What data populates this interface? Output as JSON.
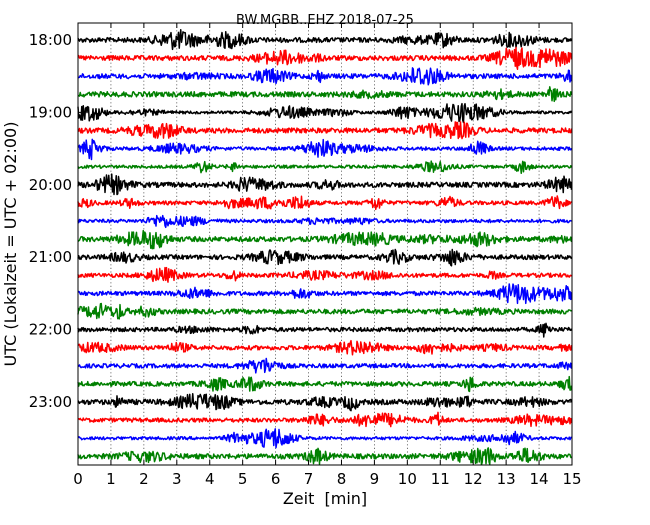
{
  "chart_data": {
    "type": "line",
    "title": "BW.MGBB..EHZ 2018-07-25",
    "xlabel": "Zeit  [min]",
    "ylabel": "UTC (Lokalzeit = UTC + 02:00)",
    "xlim": [
      0,
      15
    ],
    "x_ticks": [
      "0",
      "1",
      "2",
      "3",
      "4",
      "5",
      "6",
      "7",
      "8",
      "9",
      "10",
      "11",
      "12",
      "13",
      "14",
      "15"
    ],
    "y_ticks": [
      "18:00",
      "19:00",
      "20:00",
      "21:00",
      "22:00",
      "23:00"
    ],
    "grid": "vertical dotted",
    "trace_colors": [
      "#000000",
      "#ff0000",
      "#0000ff",
      "#008000"
    ],
    "traces": [
      {
        "start": "18:00",
        "color": "#000000"
      },
      {
        "start": "18:15",
        "color": "#ff0000"
      },
      {
        "start": "18:30",
        "color": "#0000ff"
      },
      {
        "start": "18:45",
        "color": "#008000"
      },
      {
        "start": "19:00",
        "color": "#000000"
      },
      {
        "start": "19:15",
        "color": "#ff0000"
      },
      {
        "start": "19:30",
        "color": "#0000ff"
      },
      {
        "start": "19:45",
        "color": "#008000"
      },
      {
        "start": "20:00",
        "color": "#000000"
      },
      {
        "start": "20:15",
        "color": "#ff0000"
      },
      {
        "start": "20:30",
        "color": "#0000ff"
      },
      {
        "start": "20:45",
        "color": "#008000"
      },
      {
        "start": "21:00",
        "color": "#000000"
      },
      {
        "start": "21:15",
        "color": "#ff0000"
      },
      {
        "start": "21:30",
        "color": "#0000ff"
      },
      {
        "start": "21:45",
        "color": "#008000"
      },
      {
        "start": "22:00",
        "color": "#000000"
      },
      {
        "start": "22:15",
        "color": "#ff0000"
      },
      {
        "start": "22:30",
        "color": "#0000ff"
      },
      {
        "start": "22:45",
        "color": "#008000"
      },
      {
        "start": "23:00",
        "color": "#000000"
      },
      {
        "start": "23:15",
        "color": "#ff0000"
      },
      {
        "start": "23:30",
        "color": "#0000ff"
      },
      {
        "start": "23:45",
        "color": "#008000"
      }
    ]
  }
}
